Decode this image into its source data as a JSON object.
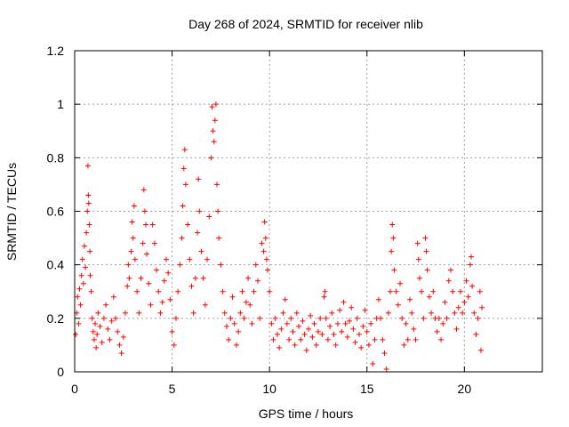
{
  "chart_data": {
    "type": "scatter",
    "title": "Day 268 of 2024, SRMTID for receiver nlib",
    "xlabel": "GPS time / hours",
    "ylabel": "SRMTID / TECUs",
    "xlim": [
      0,
      24
    ],
    "ylim": [
      0,
      1.2
    ],
    "xticks": [
      0,
      5,
      10,
      15,
      20
    ],
    "xtick_labels": [
      "0",
      "5",
      "10",
      "15",
      "20"
    ],
    "yticks": [
      0,
      0.2,
      0.4,
      0.6,
      0.8,
      1,
      1.2
    ],
    "ytick_labels": [
      "0",
      "0.2",
      "0.4",
      "0.6",
      "0.8",
      "1",
      "1.2"
    ],
    "grid": true,
    "marker": "+",
    "series": [
      {
        "name": "SRMTID",
        "color": "#ff0000",
        "points": [
          [
            0.05,
            0.14
          ],
          [
            0.1,
            0.22
          ],
          [
            0.15,
            0.28
          ],
          [
            0.2,
            0.18
          ],
          [
            0.25,
            0.31
          ],
          [
            0.3,
            0.25
          ],
          [
            0.35,
            0.36
          ],
          [
            0.4,
            0.42
          ],
          [
            0.45,
            0.33
          ],
          [
            0.5,
            0.47
          ],
          [
            0.55,
            0.39
          ],
          [
            0.6,
            0.52
          ],
          [
            0.65,
            0.6
          ],
          [
            0.68,
            0.77
          ],
          [
            0.7,
            0.66
          ],
          [
            0.72,
            0.63
          ],
          [
            0.75,
            0.55
          ],
          [
            0.78,
            0.45
          ],
          [
            0.8,
            0.36
          ],
          [
            0.85,
            0.3
          ],
          [
            0.9,
            0.2
          ],
          [
            0.95,
            0.15
          ],
          [
            1.0,
            0.12
          ],
          [
            1.05,
            0.18
          ],
          [
            1.1,
            0.09
          ],
          [
            1.15,
            0.14
          ],
          [
            1.2,
            0.22
          ],
          [
            1.3,
            0.17
          ],
          [
            1.4,
            0.11
          ],
          [
            1.5,
            0.2
          ],
          [
            1.6,
            0.25
          ],
          [
            1.7,
            0.16
          ],
          [
            1.8,
            0.12
          ],
          [
            1.9,
            0.19
          ],
          [
            2.0,
            0.28
          ],
          [
            2.1,
            0.2
          ],
          [
            2.2,
            0.15
          ],
          [
            2.3,
            0.1
          ],
          [
            2.4,
            0.07
          ],
          [
            2.5,
            0.13
          ],
          [
            2.6,
            0.22
          ],
          [
            2.7,
            0.32
          ],
          [
            2.75,
            0.4
          ],
          [
            2.8,
            0.35
          ],
          [
            2.9,
            0.45
          ],
          [
            2.95,
            0.56
          ],
          [
            3.0,
            0.5
          ],
          [
            3.05,
            0.62
          ],
          [
            3.1,
            0.42
          ],
          [
            3.2,
            0.3
          ],
          [
            3.3,
            0.22
          ],
          [
            3.4,
            0.35
          ],
          [
            3.5,
            0.48
          ],
          [
            3.55,
            0.68
          ],
          [
            3.6,
            0.6
          ],
          [
            3.65,
            0.55
          ],
          [
            3.7,
            0.44
          ],
          [
            3.8,
            0.33
          ],
          [
            3.9,
            0.25
          ],
          [
            4.0,
            0.55
          ],
          [
            4.1,
            0.48
          ],
          [
            4.2,
            0.38
          ],
          [
            4.3,
            0.3
          ],
          [
            4.4,
            0.22
          ],
          [
            4.5,
            0.26
          ],
          [
            4.6,
            0.34
          ],
          [
            4.7,
            0.42
          ],
          [
            4.8,
            0.37
          ],
          [
            4.9,
            0.27
          ],
          [
            5.0,
            0.15
          ],
          [
            5.1,
            0.1
          ],
          [
            5.2,
            0.2
          ],
          [
            5.3,
            0.3
          ],
          [
            5.4,
            0.4
          ],
          [
            5.5,
            0.5
          ],
          [
            5.55,
            0.62
          ],
          [
            5.6,
            0.76
          ],
          [
            5.65,
            0.83
          ],
          [
            5.7,
            0.7
          ],
          [
            5.8,
            0.55
          ],
          [
            5.9,
            0.42
          ],
          [
            6.0,
            0.32
          ],
          [
            6.1,
            0.22
          ],
          [
            6.2,
            0.35
          ],
          [
            6.3,
            0.52
          ],
          [
            6.35,
            0.72
          ],
          [
            6.4,
            0.6
          ],
          [
            6.5,
            0.45
          ],
          [
            6.6,
            0.35
          ],
          [
            6.7,
            0.25
          ],
          [
            6.8,
            0.42
          ],
          [
            6.9,
            0.58
          ],
          [
            7.0,
            0.8
          ],
          [
            7.05,
            0.99
          ],
          [
            7.1,
            0.9
          ],
          [
            7.15,
            0.86
          ],
          [
            7.2,
            0.94
          ],
          [
            7.25,
            1.0
          ],
          [
            7.3,
            0.7
          ],
          [
            7.35,
            0.6
          ],
          [
            7.4,
            0.5
          ],
          [
            7.5,
            0.4
          ],
          [
            7.6,
            0.3
          ],
          [
            7.7,
            0.22
          ],
          [
            7.8,
            0.17
          ],
          [
            7.9,
            0.12
          ],
          [
            8.0,
            0.2
          ],
          [
            8.1,
            0.28
          ],
          [
            8.2,
            0.18
          ],
          [
            8.3,
            0.1
          ],
          [
            8.4,
            0.15
          ],
          [
            8.5,
            0.22
          ],
          [
            8.6,
            0.3
          ],
          [
            8.7,
            0.2
          ],
          [
            8.8,
            0.26
          ],
          [
            8.9,
            0.35
          ],
          [
            9.0,
            0.25
          ],
          [
            9.1,
            0.18
          ],
          [
            9.2,
            0.3
          ],
          [
            9.3,
            0.4
          ],
          [
            9.4,
            0.34
          ],
          [
            9.5,
            0.2
          ],
          [
            9.6,
            0.48
          ],
          [
            9.7,
            0.45
          ],
          [
            9.75,
            0.56
          ],
          [
            9.8,
            0.5
          ],
          [
            9.85,
            0.42
          ],
          [
            9.9,
            0.38
          ],
          [
            10.0,
            0.3
          ],
          [
            10.1,
            0.18
          ],
          [
            10.2,
            0.12
          ],
          [
            10.3,
            0.2
          ],
          [
            10.4,
            0.14
          ],
          [
            10.5,
            0.09
          ],
          [
            10.6,
            0.16
          ],
          [
            10.7,
            0.22
          ],
          [
            10.8,
            0.27
          ],
          [
            10.9,
            0.18
          ],
          [
            11.0,
            0.12
          ],
          [
            11.1,
            0.2
          ],
          [
            11.2,
            0.15
          ],
          [
            11.3,
            0.1
          ],
          [
            11.4,
            0.22
          ],
          [
            11.5,
            0.17
          ],
          [
            11.6,
            0.12
          ],
          [
            11.7,
            0.19
          ],
          [
            11.8,
            0.14
          ],
          [
            11.9,
            0.08
          ],
          [
            12.0,
            0.16
          ],
          [
            12.1,
            0.21
          ],
          [
            12.2,
            0.13
          ],
          [
            12.3,
            0.18
          ],
          [
            12.4,
            0.1
          ],
          [
            12.5,
            0.15
          ],
          [
            12.6,
            0.2
          ],
          [
            12.7,
            0.14
          ],
          [
            12.8,
            0.28
          ],
          [
            12.85,
            0.3
          ],
          [
            12.9,
            0.2
          ],
          [
            13.0,
            0.12
          ],
          [
            13.1,
            0.17
          ],
          [
            13.2,
            0.22
          ],
          [
            13.3,
            0.14
          ],
          [
            13.4,
            0.1
          ],
          [
            13.5,
            0.18
          ],
          [
            13.6,
            0.23
          ],
          [
            13.7,
            0.15
          ],
          [
            13.8,
            0.26
          ],
          [
            13.9,
            0.18
          ],
          [
            14.0,
            0.13
          ],
          [
            14.1,
            0.19
          ],
          [
            14.2,
            0.24
          ],
          [
            14.3,
            0.16
          ],
          [
            14.4,
            0.11
          ],
          [
            14.5,
            0.2
          ],
          [
            14.6,
            0.14
          ],
          [
            14.7,
            0.09
          ],
          [
            14.8,
            0.17
          ],
          [
            14.9,
            0.23
          ],
          [
            15.0,
            0.15
          ],
          [
            15.1,
            0.1
          ],
          [
            15.2,
            0.18
          ],
          [
            15.3,
            0.03
          ],
          [
            15.4,
            0.12
          ],
          [
            15.5,
            0.2
          ],
          [
            15.6,
            0.27
          ],
          [
            15.7,
            0.2
          ],
          [
            15.8,
            0.12
          ],
          [
            15.9,
            0.07
          ],
          [
            16.0,
            0.01
          ],
          [
            16.1,
            0.22
          ],
          [
            16.2,
            0.3
          ],
          [
            16.25,
            0.45
          ],
          [
            16.3,
            0.55
          ],
          [
            16.35,
            0.5
          ],
          [
            16.4,
            0.38
          ],
          [
            16.5,
            0.3
          ],
          [
            16.6,
            0.25
          ],
          [
            16.7,
            0.33
          ],
          [
            16.8,
            0.2
          ],
          [
            16.9,
            0.1
          ],
          [
            17.0,
            0.18
          ],
          [
            17.1,
            0.12
          ],
          [
            17.2,
            0.27
          ],
          [
            17.3,
            0.22
          ],
          [
            17.4,
            0.16
          ],
          [
            17.5,
            0.12
          ],
          [
            17.6,
            0.48
          ],
          [
            17.65,
            0.42
          ],
          [
            17.7,
            0.35
          ],
          [
            17.8,
            0.3
          ],
          [
            17.9,
            0.2
          ],
          [
            18.0,
            0.5
          ],
          [
            18.05,
            0.45
          ],
          [
            18.1,
            0.38
          ],
          [
            18.2,
            0.28
          ],
          [
            18.3,
            0.22
          ],
          [
            18.4,
            0.3
          ],
          [
            18.5,
            0.2
          ],
          [
            18.6,
            0.15
          ],
          [
            18.7,
            0.2
          ],
          [
            18.8,
            0.12
          ],
          [
            18.9,
            0.18
          ],
          [
            19.0,
            0.26
          ],
          [
            19.1,
            0.2
          ],
          [
            19.2,
            0.34
          ],
          [
            19.3,
            0.38
          ],
          [
            19.4,
            0.3
          ],
          [
            19.5,
            0.22
          ],
          [
            19.6,
            0.16
          ],
          [
            19.7,
            0.24
          ],
          [
            19.8,
            0.3
          ],
          [
            19.9,
            0.22
          ],
          [
            20.0,
            0.26
          ],
          [
            20.1,
            0.34
          ],
          [
            20.2,
            0.28
          ],
          [
            20.3,
            0.4
          ],
          [
            20.35,
            0.43
          ],
          [
            20.4,
            0.32
          ],
          [
            20.5,
            0.22
          ],
          [
            20.6,
            0.14
          ],
          [
            20.7,
            0.2
          ],
          [
            20.8,
            0.3
          ],
          [
            20.85,
            0.08
          ],
          [
            20.9,
            0.24
          ]
        ]
      }
    ]
  }
}
